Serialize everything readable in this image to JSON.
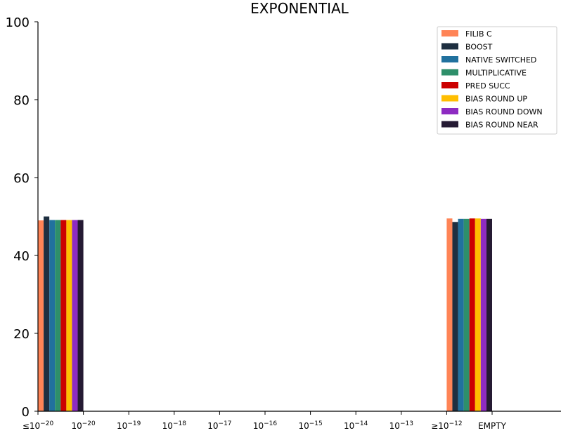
{
  "chart_data": {
    "type": "bar",
    "title": "EXPONENTIAL",
    "xlabel": "",
    "ylabel": "",
    "ylim": [
      0,
      100
    ],
    "yticks": [
      0,
      20,
      40,
      60,
      80,
      100
    ],
    "grid": false,
    "legend_position": "top-right",
    "x_tick_labels": [
      {
        "prefix": "≤",
        "base": "10",
        "exp": "−20"
      },
      {
        "prefix": "",
        "base": "10",
        "exp": "−20"
      },
      {
        "prefix": "",
        "base": "10",
        "exp": "−19"
      },
      {
        "prefix": "",
        "base": "10",
        "exp": "−18"
      },
      {
        "prefix": "",
        "base": "10",
        "exp": "−17"
      },
      {
        "prefix": "",
        "base": "10",
        "exp": "−16"
      },
      {
        "prefix": "",
        "base": "10",
        "exp": "−15"
      },
      {
        "prefix": "",
        "base": "10",
        "exp": "−14"
      },
      {
        "prefix": "",
        "base": "10",
        "exp": "−13"
      },
      {
        "prefix": "≥",
        "base": "10",
        "exp": "−12"
      },
      {
        "prefix": "",
        "base": "EMPTY",
        "exp": ""
      }
    ],
    "bar_groups": [
      "≤10^−20",
      "≥10^−12"
    ],
    "series": [
      {
        "name": "FILIB C",
        "color": "#FF8456",
        "values": [
          49.0,
          49.5
        ]
      },
      {
        "name": "BOOST",
        "color": "#1E2F40",
        "values": [
          50.0,
          48.6
        ]
      },
      {
        "name": "NATIVE SWITCHED",
        "color": "#21719E",
        "values": [
          49.1,
          49.4
        ]
      },
      {
        "name": "MULTIPLICATIVE",
        "color": "#2E8F6A",
        "values": [
          49.1,
          49.4
        ]
      },
      {
        "name": "PRED SUCC",
        "color": "#CC0000",
        "values": [
          49.1,
          49.5
        ]
      },
      {
        "name": "BIAS ROUND UP",
        "color": "#FFBE00",
        "values": [
          49.1,
          49.5
        ]
      },
      {
        "name": "BIAS ROUND DOWN",
        "color": "#8E2BC2",
        "values": [
          49.1,
          49.4
        ]
      },
      {
        "name": "BIAS ROUND NEAR",
        "color": "#251A33",
        "values": [
          49.1,
          49.4
        ]
      }
    ]
  }
}
